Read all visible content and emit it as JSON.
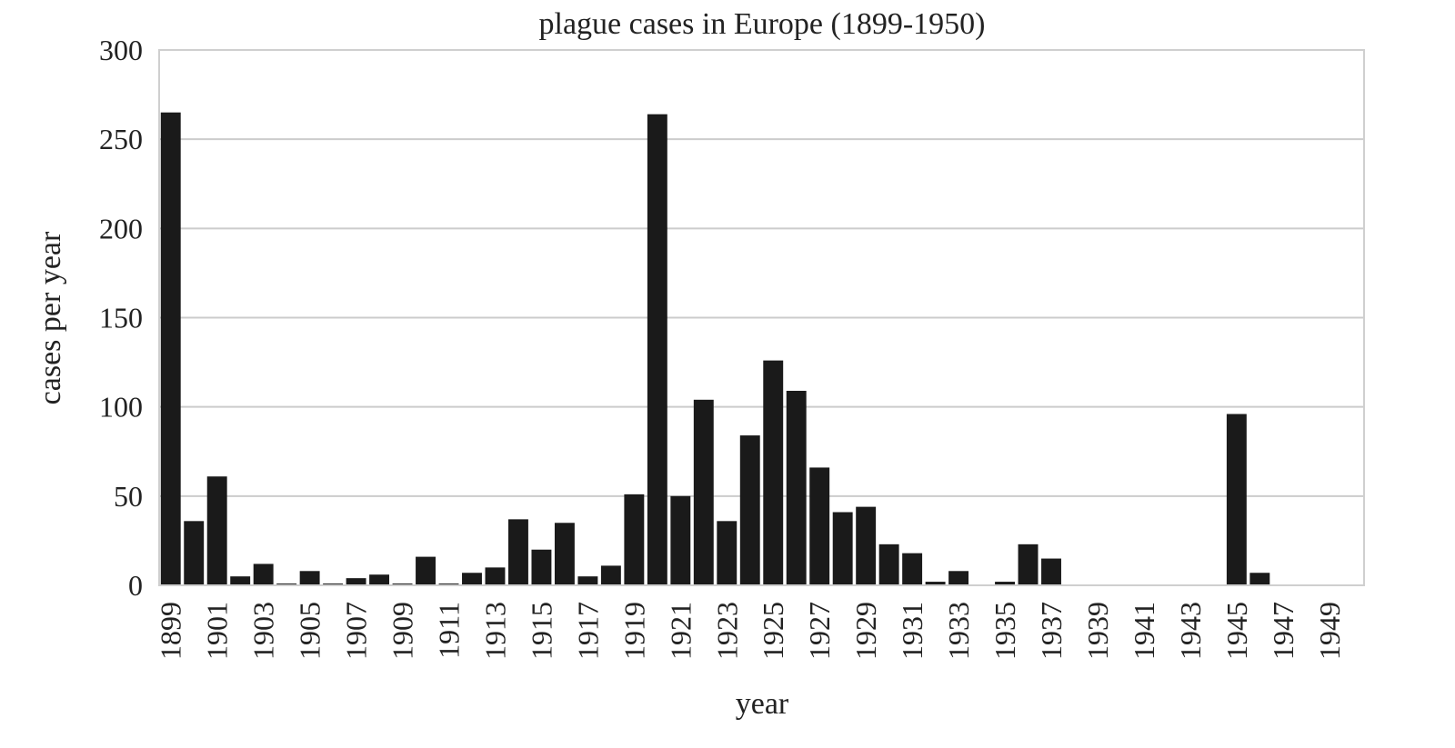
{
  "chart_data": {
    "type": "bar",
    "title": "plague cases in Europe (1899-1950)",
    "xlabel": "year",
    "ylabel": "cases per year",
    "ylim": [
      0,
      300
    ],
    "yticks": [
      0,
      50,
      100,
      150,
      200,
      250,
      300
    ],
    "grid": true,
    "bar_color": "#1a1a1a",
    "grid_color": "#cccccc",
    "categories": [
      1899,
      1900,
      1901,
      1902,
      1903,
      1904,
      1905,
      1906,
      1907,
      1908,
      1909,
      1910,
      1911,
      1912,
      1913,
      1914,
      1915,
      1916,
      1917,
      1918,
      1919,
      1920,
      1921,
      1922,
      1923,
      1924,
      1925,
      1926,
      1927,
      1928,
      1929,
      1930,
      1931,
      1932,
      1933,
      1934,
      1935,
      1936,
      1937,
      1938,
      1939,
      1940,
      1941,
      1942,
      1943,
      1944,
      1945,
      1946,
      1947,
      1948,
      1949,
      1950
    ],
    "tick_labels": [
      "1899",
      "1901",
      "1903",
      "1905",
      "1907",
      "1909",
      "1911",
      "1913",
      "1915",
      "1917",
      "1919",
      "1921",
      "1923",
      "1925",
      "1927",
      "1929",
      "1931",
      "1933",
      "1935",
      "1937",
      "1939",
      "1941",
      "1943",
      "1945",
      "1947",
      "1949"
    ],
    "values": [
      265,
      36,
      61,
      5,
      12,
      1,
      8,
      1,
      4,
      6,
      1,
      16,
      1,
      7,
      10,
      37,
      20,
      35,
      5,
      11,
      51,
      264,
      50,
      104,
      36,
      84,
      126,
      109,
      66,
      41,
      44,
      23,
      18,
      2,
      8,
      0,
      2,
      23,
      15,
      0,
      0,
      0,
      0,
      0,
      0,
      0,
      96,
      7,
      0,
      0,
      0,
      0
    ]
  }
}
